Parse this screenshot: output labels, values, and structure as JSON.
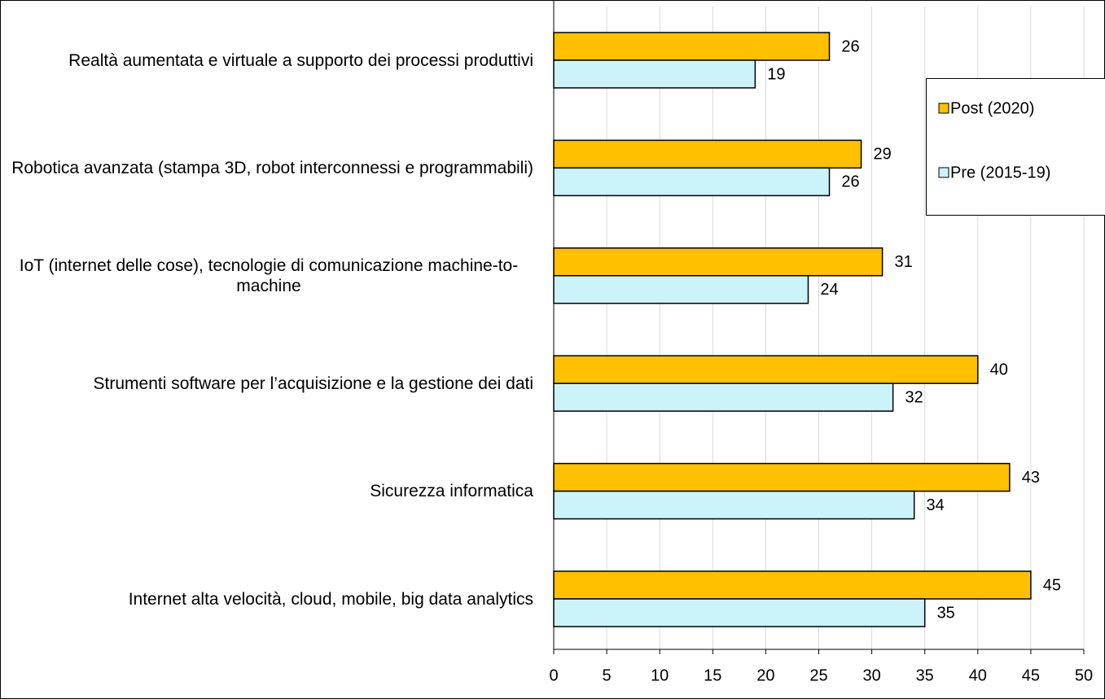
{
  "chart_data": {
    "type": "bar",
    "orientation": "horizontal",
    "categories": [
      "Realtà aumentata e virtuale a supporto dei processi produttivi",
      "Robotica avanzata (stampa 3D, robot interconnessi e programmabili)",
      "IoT (internet delle cose), tecnologie di comunicazione machine-to-machine",
      "Strumenti software per l’acquisizione e la gestione dei dati",
      "Sicurezza informatica",
      "Internet alta velocità, cloud, mobile, big data analytics"
    ],
    "series": [
      {
        "name": "Post (2020)",
        "color": "#FFC000",
        "values": [
          26,
          29,
          31,
          40,
          43,
          45
        ]
      },
      {
        "name": "Pre (2015-19)",
        "color": "#CCF2FA",
        "values": [
          19,
          26,
          24,
          32,
          34,
          35
        ]
      }
    ],
    "xlim": [
      0,
      50
    ],
    "xticks": [
      0,
      5,
      10,
      15,
      20,
      25,
      30,
      35,
      40,
      45,
      50
    ],
    "grid": true,
    "legend": "upper right"
  }
}
